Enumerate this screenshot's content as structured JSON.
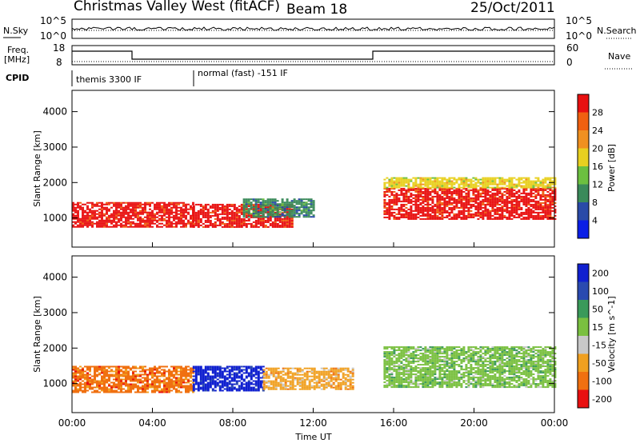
{
  "header": {
    "station": "Christmas Valley West (fitACF)",
    "beam": "Beam 18",
    "date": "25/Oct/2011"
  },
  "nsky": {
    "label": "N.Sky",
    "tick_top": "10^5",
    "tick_bottom": "10^0",
    "right_label": "N.Search",
    "right_top": "10^5",
    "right_bottom": "10^0"
  },
  "freq": {
    "label_line1": "Freq.",
    "label_line2": "[MHz]",
    "tick_top": "18",
    "tick_bottom": "8",
    "right_label": "Nave",
    "right_top": "60",
    "right_bottom": "0"
  },
  "cpid": {
    "label": "CPID",
    "mode1": "themis 3300 IF",
    "mode2": "normal (fast) -151 IF"
  },
  "chart_data": [
    {
      "type": "heatmap",
      "name": "power",
      "ylabel": "Slant Range [km]",
      "yticks": [
        "1000",
        "2000",
        "3000",
        "4000"
      ],
      "yrange": [
        180,
        4600
      ],
      "colorbar": {
        "label": "Power [dB]",
        "ticks": [
          "4",
          "8",
          "12",
          "16",
          "20",
          "24",
          "28"
        ],
        "colors": [
          "#0a1ee6",
          "#2a4aa8",
          "#3a8a5a",
          "#6cc040",
          "#e8d020",
          "#f09020",
          "#f06010",
          "#e81010"
        ]
      },
      "features": [
        {
          "t0": 0.0,
          "t1": 6.0,
          "r0": 750,
          "r1": 1450,
          "level": "28"
        },
        {
          "t0": 6.0,
          "t1": 11.0,
          "r0": 750,
          "r1": 1400,
          "level": "28"
        },
        {
          "t0": 8.5,
          "t1": 12.0,
          "r0": 1050,
          "r1": 1550,
          "level": "8"
        },
        {
          "t0": 15.5,
          "t1": 24.0,
          "r0": 950,
          "r1": 1850,
          "level": "28"
        },
        {
          "t0": 15.5,
          "t1": 24.0,
          "r0": 1850,
          "r1": 2150,
          "level": "16"
        }
      ]
    },
    {
      "type": "heatmap",
      "name": "velocity",
      "ylabel": "Slant Range [km]",
      "yticks": [
        "1000",
        "2000",
        "3000",
        "4000"
      ],
      "yrange": [
        180,
        4600
      ],
      "colorbar": {
        "label": "Velocity [m s^-1]",
        "ticks": [
          "200",
          "100",
          "50",
          "15",
          "-15",
          "-50",
          "-100",
          "-200"
        ],
        "colors": [
          "#1020d0",
          "#2a4ab0",
          "#3a9a5a",
          "#7ac040",
          "#c8c8c8",
          "#f0a020",
          "#f07010",
          "#e81010"
        ]
      },
      "features": [
        {
          "t0": 0.0,
          "t1": 6.0,
          "r0": 750,
          "r1": 1500,
          "level": "-100"
        },
        {
          "t0": 6.0,
          "t1": 9.5,
          "r0": 800,
          "r1": 1500,
          "level": "200"
        },
        {
          "t0": 9.5,
          "t1": 14.0,
          "r0": 850,
          "r1": 1450,
          "level": "-50"
        },
        {
          "t0": 15.5,
          "t1": 24.0,
          "r0": 900,
          "r1": 2050,
          "level": "15"
        }
      ]
    }
  ],
  "xaxis": {
    "label": "Time UT",
    "ticks": [
      "00:00",
      "04:00",
      "08:00",
      "12:00",
      "16:00",
      "20:00",
      "00:00"
    ]
  }
}
